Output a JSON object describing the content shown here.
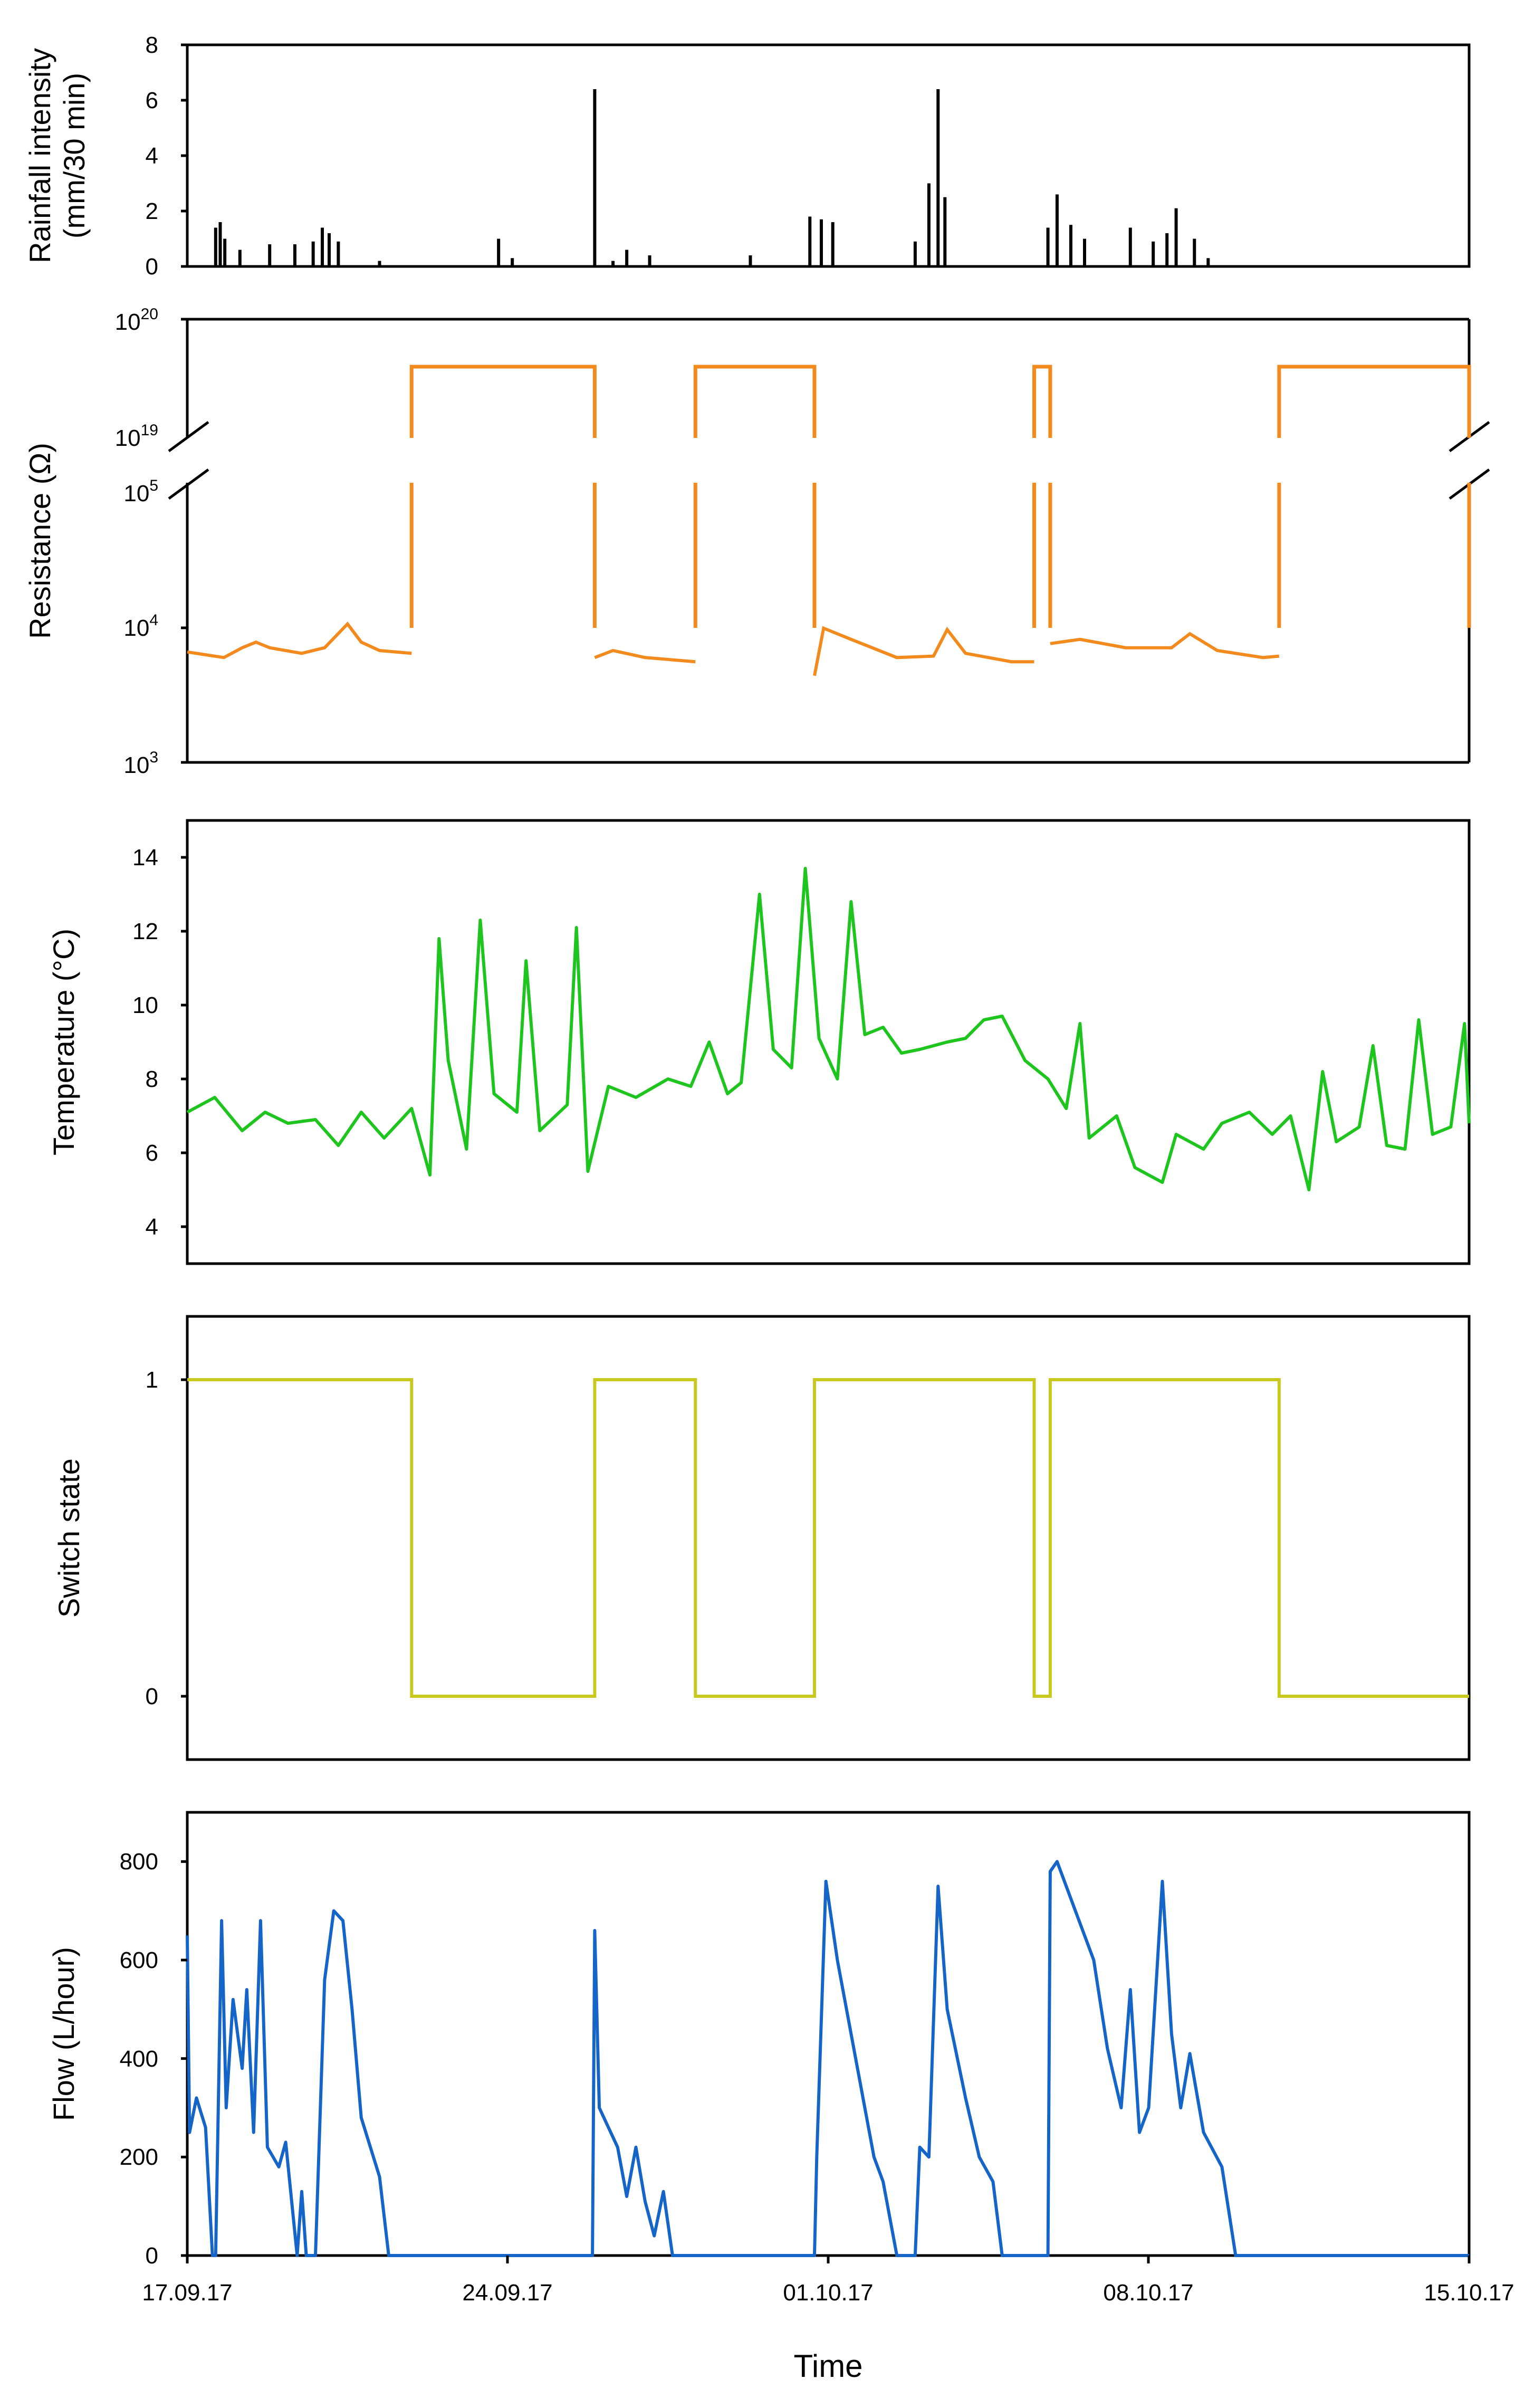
{
  "colors": {
    "rain": "#000000",
    "resistance": "#f28a1e",
    "temperature": "#1ec51e",
    "switch": "#c8c81e",
    "flow": "#1565c8"
  },
  "xaxis": {
    "label": "Time",
    "tick_labels": [
      "17.09.17",
      "24.09.17",
      "01.10.17",
      "08.10.17",
      "15.10.17"
    ],
    "range_days": [
      0,
      28
    ]
  },
  "chart_data": [
    {
      "type": "bar",
      "name": "rainfall",
      "ylabel_lines": [
        "Rainfall intensity",
        "(mm/30 min)"
      ],
      "ylim": [
        0,
        8
      ],
      "yticks": [
        "0",
        "2",
        "4",
        "6",
        "8"
      ],
      "events": [
        {
          "t": 0.62,
          "v": 1.4
        },
        {
          "t": 0.72,
          "v": 1.6
        },
        {
          "t": 0.82,
          "v": 1.0
        },
        {
          "t": 1.15,
          "v": 0.6
        },
        {
          "t": 1.8,
          "v": 0.8
        },
        {
          "t": 2.35,
          "v": 0.8
        },
        {
          "t": 2.75,
          "v": 0.9
        },
        {
          "t": 2.95,
          "v": 1.4
        },
        {
          "t": 3.1,
          "v": 1.2
        },
        {
          "t": 3.3,
          "v": 0.9
        },
        {
          "t": 4.2,
          "v": 0.2
        },
        {
          "t": 6.8,
          "v": 1.0
        },
        {
          "t": 7.1,
          "v": 0.3
        },
        {
          "t": 8.9,
          "v": 6.4
        },
        {
          "t": 9.3,
          "v": 0.2
        },
        {
          "t": 9.6,
          "v": 0.6
        },
        {
          "t": 10.1,
          "v": 0.4
        },
        {
          "t": 12.3,
          "v": 0.4
        },
        {
          "t": 13.6,
          "v": 1.8
        },
        {
          "t": 13.85,
          "v": 1.7
        },
        {
          "t": 14.1,
          "v": 1.6
        },
        {
          "t": 15.9,
          "v": 0.9
        },
        {
          "t": 16.2,
          "v": 3.0
        },
        {
          "t": 16.4,
          "v": 6.4
        },
        {
          "t": 16.55,
          "v": 2.5
        },
        {
          "t": 18.8,
          "v": 1.4
        },
        {
          "t": 19.0,
          "v": 2.6
        },
        {
          "t": 19.3,
          "v": 1.5
        },
        {
          "t": 19.6,
          "v": 1.0
        },
        {
          "t": 20.6,
          "v": 1.4
        },
        {
          "t": 21.1,
          "v": 0.9
        },
        {
          "t": 21.4,
          "v": 1.2
        },
        {
          "t": 21.6,
          "v": 2.1
        },
        {
          "t": 22.0,
          "v": 1.0
        },
        {
          "t": 22.3,
          "v": 0.3
        }
      ]
    },
    {
      "type": "line",
      "name": "resistance",
      "ylabel": "Resistance (Ω)",
      "yscale": "log-broken",
      "upper_ticks": [
        {
          "base": "10",
          "exp": "20"
        },
        {
          "base": "10",
          "exp": "19"
        }
      ],
      "lower_ticks": [
        {
          "base": "10",
          "exp": "5"
        },
        {
          "base": "10",
          "exp": "4"
        },
        {
          "base": "10",
          "exp": "3"
        }
      ],
      "open_circuit_periods": [
        [
          4.9,
          8.9
        ],
        [
          11.1,
          13.7
        ],
        [
          18.5,
          18.85
        ],
        [
          23.85,
          28.0
        ]
      ],
      "open_value_log10": 19.6,
      "points": [
        [
          0,
          3.79
        ],
        [
          0.8,
          3.75
        ],
        [
          1.2,
          3.82
        ],
        [
          1.5,
          3.86
        ],
        [
          1.8,
          3.82
        ],
        [
          2.5,
          3.78
        ],
        [
          3.0,
          3.82
        ],
        [
          3.5,
          3.99
        ],
        [
          3.8,
          3.86
        ],
        [
          4.2,
          3.8
        ],
        [
          4.9,
          3.78
        ],
        [
          8.9,
          3.75
        ],
        [
          9.3,
          3.8
        ],
        [
          10.0,
          3.75
        ],
        [
          11.1,
          3.72
        ],
        [
          13.7,
          3.62
        ],
        [
          13.9,
          3.96
        ],
        [
          14.5,
          3.88
        ],
        [
          15.5,
          3.75
        ],
        [
          16.3,
          3.76
        ],
        [
          16.6,
          3.95
        ],
        [
          17.0,
          3.78
        ],
        [
          18.0,
          3.72
        ],
        [
          18.5,
          3.72
        ],
        [
          18.85,
          3.85
        ],
        [
          19.5,
          3.88
        ],
        [
          20.5,
          3.82
        ],
        [
          21.5,
          3.82
        ],
        [
          21.9,
          3.92
        ],
        [
          22.5,
          3.8
        ],
        [
          23.5,
          3.75
        ],
        [
          23.85,
          3.76
        ]
      ]
    },
    {
      "type": "line",
      "name": "temperature",
      "ylabel": "Temperature (°C)",
      "ylim": [
        3,
        15
      ],
      "yticks": [
        "4",
        "6",
        "8",
        "10",
        "12",
        "14"
      ],
      "points": [
        [
          0,
          7.1
        ],
        [
          0.6,
          7.5
        ],
        [
          1.2,
          6.6
        ],
        [
          1.7,
          7.1
        ],
        [
          2.2,
          6.8
        ],
        [
          2.8,
          6.9
        ],
        [
          3.3,
          6.2
        ],
        [
          3.8,
          7.1
        ],
        [
          4.3,
          6.4
        ],
        [
          4.9,
          7.2
        ],
        [
          5.3,
          5.4
        ],
        [
          5.5,
          11.8
        ],
        [
          5.7,
          8.5
        ],
        [
          6.1,
          6.1
        ],
        [
          6.4,
          12.3
        ],
        [
          6.7,
          7.6
        ],
        [
          7.2,
          7.1
        ],
        [
          7.4,
          11.2
        ],
        [
          7.7,
          6.6
        ],
        [
          8.3,
          7.3
        ],
        [
          8.5,
          12.1
        ],
        [
          8.75,
          5.5
        ],
        [
          9.2,
          7.8
        ],
        [
          9.8,
          7.5
        ],
        [
          10.5,
          8.0
        ],
        [
          11.0,
          7.8
        ],
        [
          11.4,
          9.0
        ],
        [
          11.8,
          7.6
        ],
        [
          12.1,
          7.9
        ],
        [
          12.5,
          13.0
        ],
        [
          12.8,
          8.8
        ],
        [
          13.2,
          8.3
        ],
        [
          13.5,
          13.7
        ],
        [
          13.8,
          9.1
        ],
        [
          14.2,
          8.0
        ],
        [
          14.5,
          12.8
        ],
        [
          14.8,
          9.2
        ],
        [
          15.2,
          9.4
        ],
        [
          15.6,
          8.7
        ],
        [
          16.0,
          8.8
        ],
        [
          16.6,
          9.0
        ],
        [
          17.0,
          9.1
        ],
        [
          17.4,
          9.6
        ],
        [
          17.8,
          9.7
        ],
        [
          18.3,
          8.5
        ],
        [
          18.8,
          8.0
        ],
        [
          19.2,
          7.2
        ],
        [
          19.5,
          9.5
        ],
        [
          19.7,
          6.4
        ],
        [
          20.3,
          7.0
        ],
        [
          20.7,
          5.6
        ],
        [
          21.3,
          5.2
        ],
        [
          21.6,
          6.5
        ],
        [
          22.2,
          6.1
        ],
        [
          22.6,
          6.8
        ],
        [
          23.2,
          7.1
        ],
        [
          23.7,
          6.5
        ],
        [
          24.1,
          7.0
        ],
        [
          24.5,
          5.0
        ],
        [
          24.8,
          8.2
        ],
        [
          25.1,
          6.3
        ],
        [
          25.6,
          6.7
        ],
        [
          25.9,
          8.9
        ],
        [
          26.2,
          6.2
        ],
        [
          26.6,
          6.1
        ],
        [
          26.9,
          9.6
        ],
        [
          27.2,
          6.5
        ],
        [
          27.6,
          6.7
        ],
        [
          27.9,
          9.5
        ],
        [
          28.0,
          6.8
        ]
      ]
    },
    {
      "type": "line",
      "name": "switch",
      "ylabel": "Switch state",
      "ylim": [
        -0.2,
        1.2
      ],
      "yticks": [
        "0",
        "1"
      ],
      "points": [
        [
          0,
          1
        ],
        [
          4.9,
          1
        ],
        [
          4.9,
          0
        ],
        [
          8.9,
          0
        ],
        [
          8.9,
          1
        ],
        [
          11.1,
          1
        ],
        [
          11.1,
          0
        ],
        [
          13.7,
          0
        ],
        [
          13.7,
          1
        ],
        [
          18.5,
          1
        ],
        [
          18.5,
          0
        ],
        [
          18.85,
          0
        ],
        [
          18.85,
          1
        ],
        [
          23.85,
          1
        ],
        [
          23.85,
          0
        ],
        [
          28.0,
          0
        ]
      ]
    },
    {
      "type": "line",
      "name": "flow",
      "ylabel": "Flow (L/hour)",
      "ylim": [
        0,
        900
      ],
      "yticks": [
        "0",
        "200",
        "400",
        "600",
        "800"
      ],
      "points": [
        [
          0,
          650
        ],
        [
          0.05,
          250
        ],
        [
          0.2,
          320
        ],
        [
          0.4,
          260
        ],
        [
          0.55,
          0
        ],
        [
          0.62,
          0
        ],
        [
          0.75,
          680
        ],
        [
          0.85,
          300
        ],
        [
          1.0,
          520
        ],
        [
          1.2,
          380
        ],
        [
          1.3,
          540
        ],
        [
          1.45,
          250
        ],
        [
          1.6,
          680
        ],
        [
          1.75,
          220
        ],
        [
          2.0,
          180
        ],
        [
          2.15,
          230
        ],
        [
          2.4,
          0
        ],
        [
          2.5,
          130
        ],
        [
          2.6,
          0
        ],
        [
          2.8,
          0
        ],
        [
          3.0,
          560
        ],
        [
          3.2,
          700
        ],
        [
          3.4,
          680
        ],
        [
          3.6,
          500
        ],
        [
          3.8,
          280
        ],
        [
          4.2,
          160
        ],
        [
          4.4,
          0
        ],
        [
          8.85,
          0
        ],
        [
          8.9,
          660
        ],
        [
          9.0,
          300
        ],
        [
          9.4,
          220
        ],
        [
          9.6,
          120
        ],
        [
          9.8,
          220
        ],
        [
          10.0,
          110
        ],
        [
          10.2,
          40
        ],
        [
          10.4,
          130
        ],
        [
          10.6,
          0
        ],
        [
          13.7,
          0
        ],
        [
          13.75,
          200
        ],
        [
          13.95,
          760
        ],
        [
          14.2,
          600
        ],
        [
          14.6,
          400
        ],
        [
          15.0,
          200
        ],
        [
          15.2,
          150
        ],
        [
          15.5,
          0
        ],
        [
          15.9,
          0
        ],
        [
          16.0,
          220
        ],
        [
          16.2,
          200
        ],
        [
          16.4,
          750
        ],
        [
          16.6,
          500
        ],
        [
          17.0,
          320
        ],
        [
          17.3,
          200
        ],
        [
          17.6,
          150
        ],
        [
          17.8,
          0
        ],
        [
          18.8,
          0
        ],
        [
          18.85,
          780
        ],
        [
          19.0,
          800
        ],
        [
          19.4,
          700
        ],
        [
          19.8,
          600
        ],
        [
          20.1,
          420
        ],
        [
          20.4,
          300
        ],
        [
          20.6,
          540
        ],
        [
          20.8,
          250
        ],
        [
          21.0,
          300
        ],
        [
          21.3,
          760
        ],
        [
          21.5,
          450
        ],
        [
          21.7,
          300
        ],
        [
          21.9,
          410
        ],
        [
          22.2,
          250
        ],
        [
          22.6,
          180
        ],
        [
          22.9,
          0
        ],
        [
          28.0,
          0
        ]
      ]
    }
  ]
}
